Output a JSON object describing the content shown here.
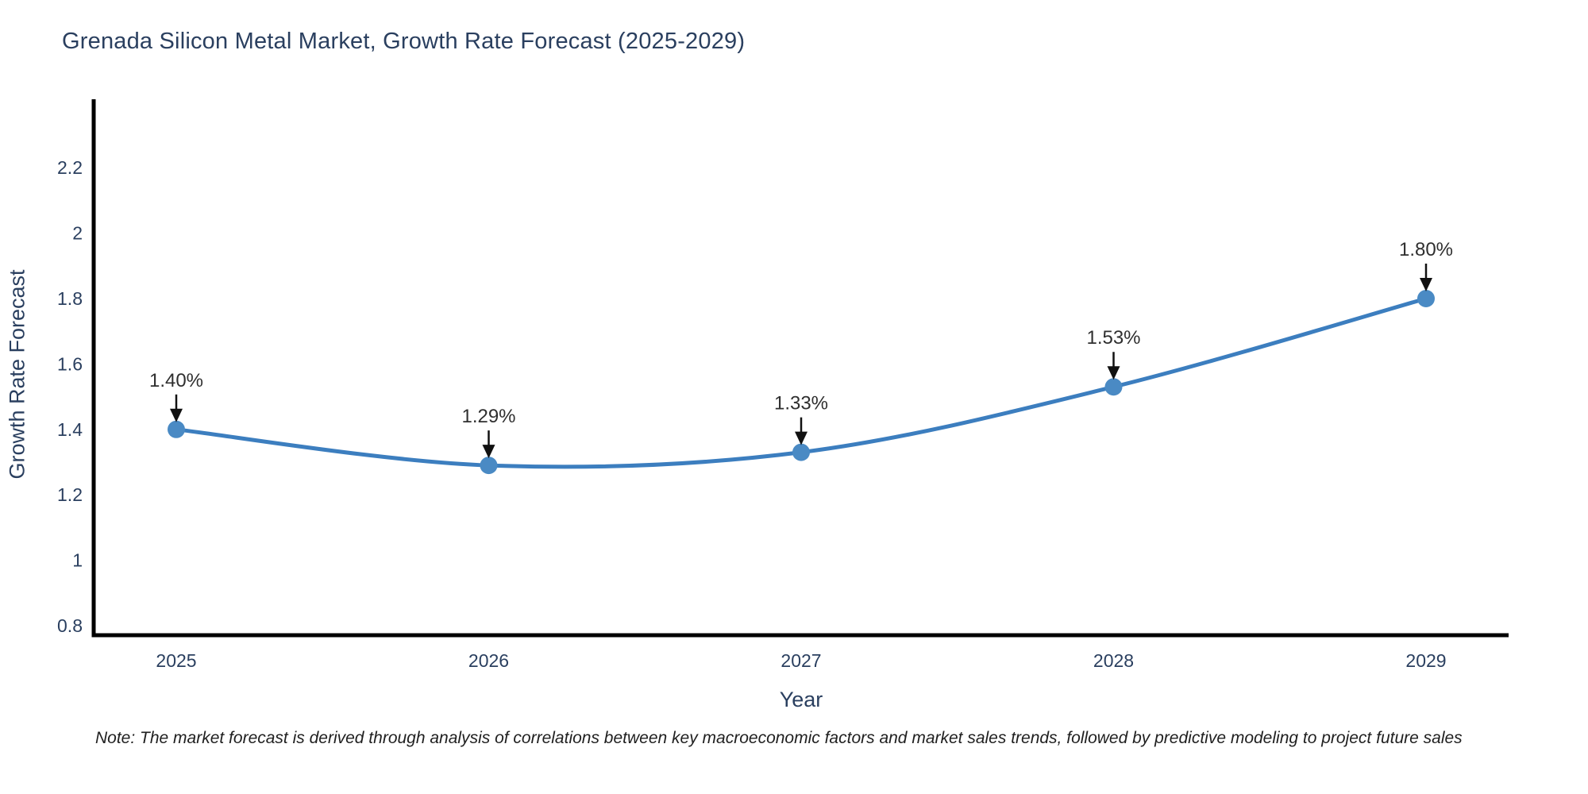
{
  "chart": {
    "title": "Grenada Silicon Metal Market, Growth Rate Forecast (2025-2029)",
    "xlabel": "Year",
    "ylabel": "Growth Rate Forecast"
  },
  "chart_data": {
    "type": "line",
    "title": "Grenada Silicon Metal Market, Growth Rate Forecast (2025-2029)",
    "xlabel": "Year",
    "ylabel": "Growth Rate Forecast",
    "x": [
      2025,
      2026,
      2027,
      2028,
      2029
    ],
    "x_tick_labels": [
      "2025",
      "2026",
      "2027",
      "2028",
      "2029"
    ],
    "series": [
      {
        "name": "Growth Rate Forecast",
        "values": [
          1.4,
          1.29,
          1.33,
          1.53,
          1.8
        ]
      }
    ],
    "point_labels": [
      "1.40%",
      "1.29%",
      "1.33%",
      "1.53%",
      "1.80%"
    ],
    "yticks": [
      0.8,
      1.0,
      1.2,
      1.4,
      1.6,
      1.8,
      2.0,
      2.2
    ],
    "ytick_labels": [
      "0.8",
      "1",
      "1.2",
      "1.4",
      "1.6",
      "1.8",
      "2",
      "2.2"
    ],
    "ylim": [
      0.77,
      2.44
    ],
    "grid": false,
    "legend_position": "none",
    "line_shape": "spline",
    "annotations_have_arrows": true,
    "colors": {
      "line": "#3c7ebf",
      "marker": "#4a8ac4",
      "axis": "#000000",
      "tick_text": "#2a3f5f",
      "annotation_text": "#2f2f2f",
      "arrow": "#111111",
      "background": "#ffffff"
    }
  },
  "footnote": {
    "text": "Note: The market forecast is derived through analysis of correlations between key macroeconomic factors and market sales trends, followed by predictive modeling to project future sales"
  }
}
